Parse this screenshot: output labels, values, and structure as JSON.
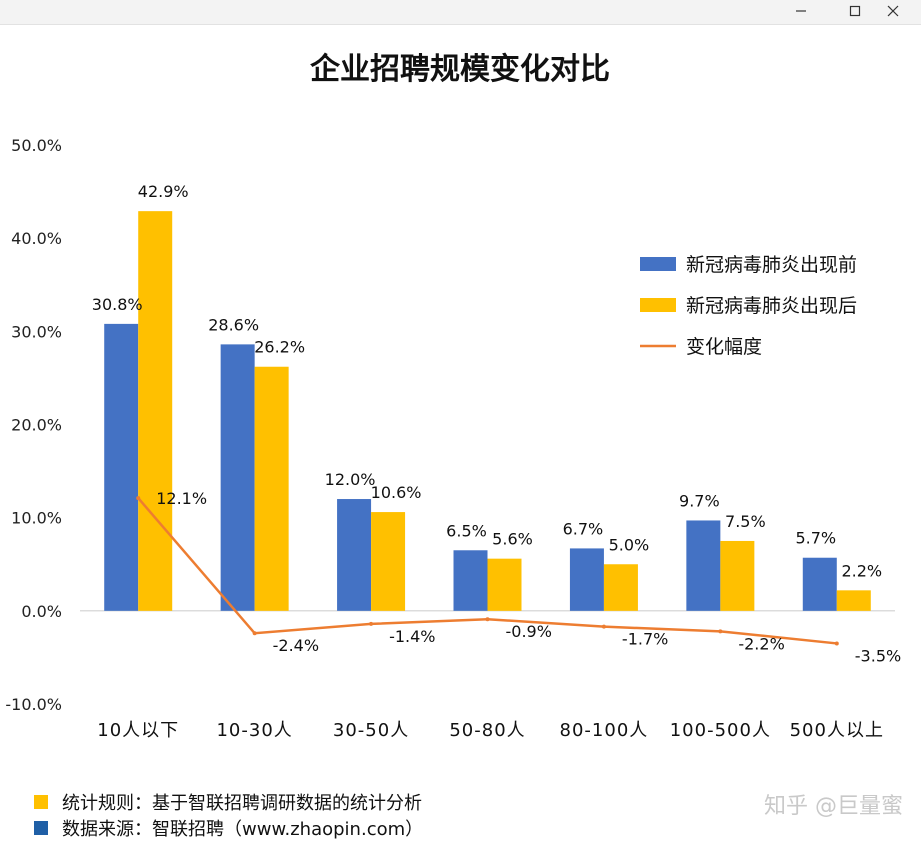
{
  "window": {
    "controls": [
      "minimize-icon",
      "maximize-icon",
      "close-icon"
    ]
  },
  "chart_data": {
    "type": "bar",
    "title": "企业招聘规模变化对比",
    "categories": [
      "10人以下",
      "10-30人",
      "30-50人",
      "50-80人",
      "80-100人",
      "100-500人",
      "500人以上"
    ],
    "series": [
      {
        "name": "新冠病毒肺炎出现前",
        "type": "bar",
        "color": "#4472C4",
        "values": [
          30.8,
          28.6,
          12.0,
          6.5,
          6.7,
          9.7,
          5.7
        ],
        "labels": [
          "30.8%",
          "28.6%",
          "12.0%",
          "6.5%",
          "6.7%",
          "9.7%",
          "5.7%"
        ]
      },
      {
        "name": "新冠病毒肺炎出现后",
        "type": "bar",
        "color": "#FFC000",
        "values": [
          42.9,
          26.2,
          10.6,
          5.6,
          5.0,
          7.5,
          2.2
        ],
        "labels": [
          "42.9%",
          "26.2%",
          "10.6%",
          "5.6%",
          "5.0%",
          "7.5%",
          "2.2%"
        ]
      },
      {
        "name": "变化幅度",
        "type": "line",
        "color": "#ED7D31",
        "values": [
          12.1,
          -2.4,
          -1.4,
          -0.9,
          -1.7,
          -2.2,
          -3.5
        ],
        "labels": [
          "12.1%",
          "-2.4%",
          "-1.4%",
          "-0.9%",
          "-1.7%",
          "-2.2%",
          "-3.5%"
        ]
      }
    ],
    "ylim": [
      -10,
      50
    ],
    "yticks": [
      50,
      40,
      30,
      20,
      10,
      0,
      -10
    ],
    "ytick_labels": [
      "50.0%",
      "40.0%",
      "30.0%",
      "20.0%",
      "10.0%",
      "0.0%",
      "-10.0%"
    ],
    "legend_position": "right",
    "grid": false
  },
  "footer": {
    "rule": {
      "text": "统计规则：基于智联招聘调研数据的统计分析",
      "color": "#FFC000"
    },
    "source": {
      "text": "数据来源：智联招聘（www.zhaopin.com）",
      "color": "#1F5FA6"
    }
  },
  "watermark": "知乎 @巨量蜜"
}
